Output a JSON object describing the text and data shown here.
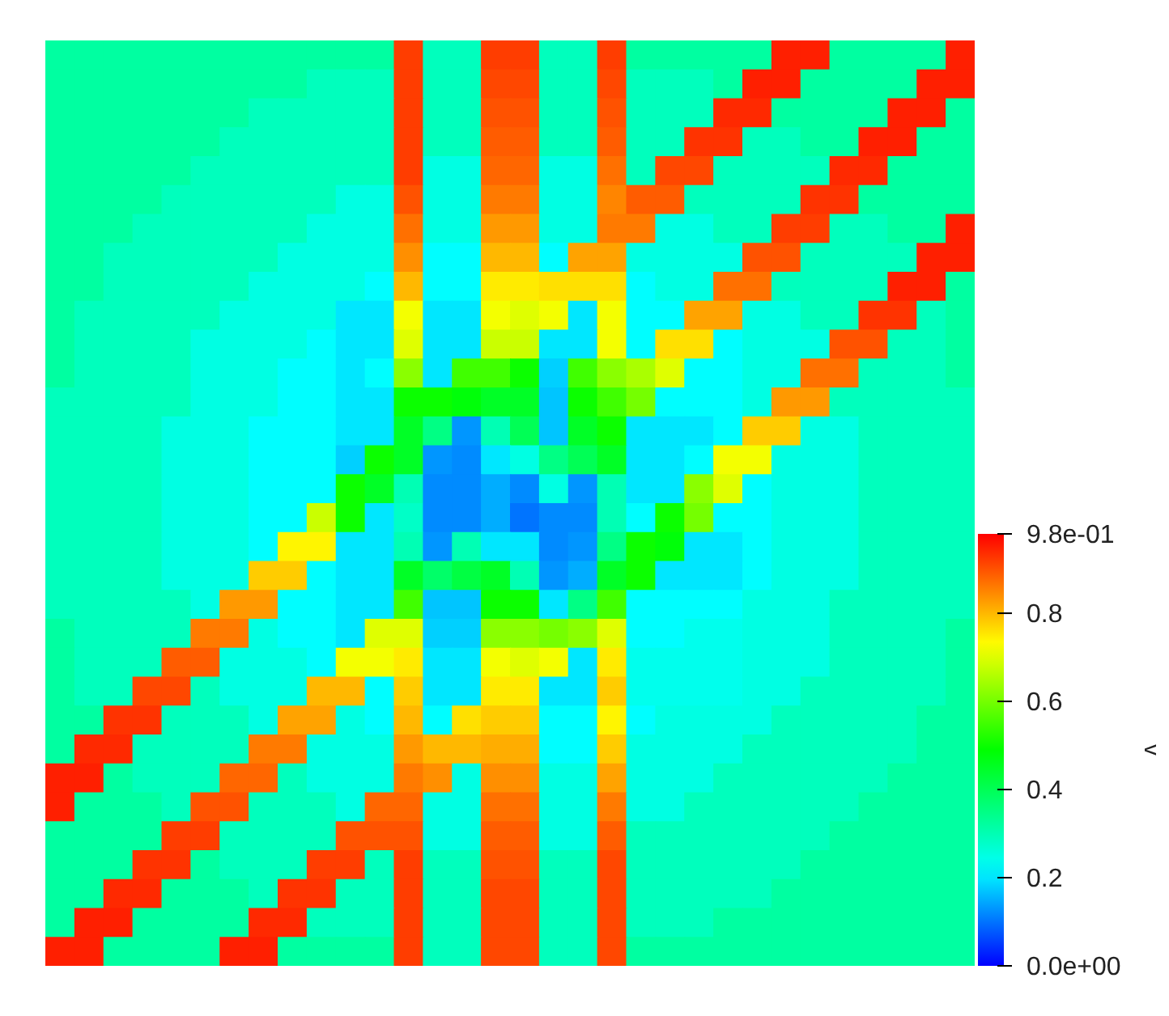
{
  "chart_data": {
    "type": "heatmap",
    "clabel": "v",
    "tick_labels": false,
    "categories": [
      null,
      null,
      null,
      null,
      null,
      null,
      null,
      null,
      null,
      null,
      null,
      null,
      null,
      null,
      null,
      null,
      null,
      null,
      null,
      null,
      null,
      null,
      null,
      null,
      null,
      null,
      null,
      null,
      null,
      null,
      null,
      null
    ],
    "y_categories": [
      null,
      null,
      null,
      null,
      null,
      null,
      null,
      null,
      null,
      null,
      null,
      null,
      null,
      null,
      null,
      null,
      null,
      null,
      null,
      null,
      null,
      null,
      null,
      null,
      null,
      null,
      null,
      null,
      null,
      null,
      null,
      null
    ],
    "clim": [
      0,
      0.98
    ],
    "cticks": [
      {
        "value": 0,
        "label": "0.0e+00"
      },
      {
        "value": 0.2,
        "label": "0.2"
      },
      {
        "value": 0.4,
        "label": "0.4"
      },
      {
        "value": 0.6,
        "label": "0.6"
      },
      {
        "value": 0.8,
        "label": "0.8"
      },
      {
        "value": 0.98,
        "label": "9.8e-01"
      }
    ],
    "cells": [
      [
        0.32,
        0.32,
        0.32,
        0.32,
        0.32,
        0.32,
        0.32,
        0.32,
        0.32,
        0.32,
        0.32,
        0.32,
        0.92,
        0.29,
        0.29,
        0.92,
        0.92,
        0.29,
        0.29,
        0.92,
        0.32,
        0.32,
        0.32,
        0.32,
        0.32,
        0.95,
        0.95,
        0.32,
        0.32,
        0.32,
        0.32,
        0.95
      ],
      [
        0.32,
        0.32,
        0.32,
        0.32,
        0.32,
        0.32,
        0.32,
        0.32,
        0.32,
        0.29,
        0.29,
        0.29,
        0.92,
        0.29,
        0.29,
        0.91,
        0.91,
        0.29,
        0.29,
        0.91,
        0.29,
        0.29,
        0.29,
        0.32,
        0.95,
        0.95,
        0.32,
        0.32,
        0.32,
        0.32,
        0.95,
        0.95
      ],
      [
        0.32,
        0.32,
        0.32,
        0.32,
        0.32,
        0.32,
        0.32,
        0.29,
        0.29,
        0.29,
        0.29,
        0.29,
        0.92,
        0.29,
        0.29,
        0.9,
        0.9,
        0.29,
        0.29,
        0.9,
        0.29,
        0.29,
        0.29,
        0.94,
        0.94,
        0.32,
        0.32,
        0.32,
        0.32,
        0.95,
        0.95,
        0.32
      ],
      [
        0.32,
        0.32,
        0.32,
        0.32,
        0.32,
        0.32,
        0.29,
        0.29,
        0.29,
        0.29,
        0.29,
        0.29,
        0.92,
        0.29,
        0.29,
        0.89,
        0.89,
        0.29,
        0.29,
        0.89,
        0.29,
        0.29,
        0.93,
        0.93,
        0.29,
        0.29,
        0.32,
        0.32,
        0.95,
        0.95,
        0.32,
        0.32
      ],
      [
        0.32,
        0.32,
        0.32,
        0.32,
        0.32,
        0.29,
        0.29,
        0.29,
        0.29,
        0.29,
        0.29,
        0.29,
        0.92,
        0.25,
        0.25,
        0.88,
        0.88,
        0.25,
        0.25,
        0.87,
        0.29,
        0.91,
        0.91,
        0.29,
        0.29,
        0.29,
        0.29,
        0.94,
        0.94,
        0.32,
        0.32,
        0.32
      ],
      [
        0.32,
        0.32,
        0.32,
        0.32,
        0.29,
        0.29,
        0.29,
        0.29,
        0.29,
        0.29,
        0.25,
        0.25,
        0.9,
        0.25,
        0.25,
        0.86,
        0.86,
        0.25,
        0.25,
        0.85,
        0.89,
        0.89,
        0.29,
        0.29,
        0.29,
        0.29,
        0.93,
        0.93,
        0.32,
        0.32,
        0.32,
        0.32
      ],
      [
        0.32,
        0.32,
        0.32,
        0.29,
        0.29,
        0.29,
        0.29,
        0.29,
        0.29,
        0.25,
        0.25,
        0.25,
        0.87,
        0.25,
        0.25,
        0.83,
        0.83,
        0.25,
        0.25,
        0.86,
        0.86,
        0.25,
        0.25,
        0.29,
        0.29,
        0.92,
        0.92,
        0.29,
        0.29,
        0.32,
        0.32,
        0.95
      ],
      [
        0.32,
        0.32,
        0.29,
        0.29,
        0.29,
        0.29,
        0.29,
        0.29,
        0.25,
        0.25,
        0.25,
        0.25,
        0.84,
        0.22,
        0.22,
        0.8,
        0.8,
        0.22,
        0.82,
        0.82,
        0.25,
        0.25,
        0.25,
        0.25,
        0.9,
        0.9,
        0.29,
        0.29,
        0.29,
        0.29,
        0.95,
        0.95
      ],
      [
        0.32,
        0.32,
        0.29,
        0.29,
        0.29,
        0.29,
        0.29,
        0.25,
        0.25,
        0.25,
        0.25,
        0.22,
        0.8,
        0.22,
        0.22,
        0.75,
        0.75,
        0.76,
        0.76,
        0.76,
        0.22,
        0.25,
        0.25,
        0.87,
        0.87,
        0.29,
        0.29,
        0.29,
        0.29,
        0.95,
        0.95,
        0.32
      ],
      [
        0.32,
        0.29,
        0.29,
        0.29,
        0.29,
        0.29,
        0.25,
        0.25,
        0.25,
        0.25,
        0.2,
        0.2,
        0.72,
        0.2,
        0.2,
        0.72,
        0.7,
        0.72,
        0.2,
        0.72,
        0.22,
        0.22,
        0.82,
        0.82,
        0.25,
        0.25,
        0.29,
        0.29,
        0.93,
        0.93,
        0.29,
        0.32
      ],
      [
        0.32,
        0.29,
        0.29,
        0.29,
        0.29,
        0.25,
        0.25,
        0.25,
        0.25,
        0.22,
        0.2,
        0.2,
        0.7,
        0.2,
        0.2,
        0.68,
        0.68,
        0.2,
        0.2,
        0.72,
        0.22,
        0.76,
        0.76,
        0.22,
        0.25,
        0.25,
        0.25,
        0.9,
        0.9,
        0.29,
        0.29,
        0.32
      ],
      [
        0.32,
        0.29,
        0.29,
        0.29,
        0.29,
        0.25,
        0.25,
        0.25,
        0.22,
        0.22,
        0.2,
        0.22,
        0.62,
        0.2,
        0.55,
        0.55,
        0.5,
        0.18,
        0.55,
        0.62,
        0.65,
        0.7,
        0.22,
        0.22,
        0.25,
        0.25,
        0.87,
        0.87,
        0.29,
        0.29,
        0.29,
        0.32
      ],
      [
        0.29,
        0.29,
        0.29,
        0.29,
        0.29,
        0.25,
        0.25,
        0.25,
        0.22,
        0.22,
        0.2,
        0.2,
        0.5,
        0.5,
        0.48,
        0.45,
        0.45,
        0.17,
        0.5,
        0.55,
        0.6,
        0.22,
        0.22,
        0.22,
        0.25,
        0.83,
        0.83,
        0.29,
        0.29,
        0.29,
        0.29,
        0.29
      ],
      [
        0.29,
        0.29,
        0.29,
        0.29,
        0.25,
        0.25,
        0.25,
        0.22,
        0.22,
        0.22,
        0.2,
        0.2,
        0.45,
        0.35,
        0.13,
        0.3,
        0.4,
        0.17,
        0.45,
        0.5,
        0.2,
        0.2,
        0.2,
        0.22,
        0.78,
        0.78,
        0.25,
        0.25,
        0.29,
        0.29,
        0.29,
        0.29
      ],
      [
        0.29,
        0.29,
        0.29,
        0.29,
        0.25,
        0.25,
        0.25,
        0.22,
        0.22,
        0.22,
        0.18,
        0.5,
        0.45,
        0.13,
        0.12,
        0.2,
        0.25,
        0.35,
        0.4,
        0.45,
        0.2,
        0.2,
        0.22,
        0.72,
        0.72,
        0.25,
        0.25,
        0.25,
        0.29,
        0.29,
        0.29,
        0.29
      ],
      [
        0.29,
        0.29,
        0.29,
        0.29,
        0.25,
        0.25,
        0.25,
        0.22,
        0.22,
        0.22,
        0.5,
        0.45,
        0.3,
        0.12,
        0.12,
        0.15,
        0.12,
        0.25,
        0.13,
        0.3,
        0.2,
        0.2,
        0.62,
        0.7,
        0.22,
        0.25,
        0.25,
        0.25,
        0.29,
        0.29,
        0.29,
        0.29
      ],
      [
        0.29,
        0.29,
        0.29,
        0.29,
        0.25,
        0.25,
        0.25,
        0.22,
        0.22,
        0.68,
        0.5,
        0.2,
        0.28,
        0.12,
        0.12,
        0.15,
        0.1,
        0.12,
        0.12,
        0.3,
        0.22,
        0.5,
        0.6,
        0.22,
        0.22,
        0.25,
        0.25,
        0.25,
        0.29,
        0.29,
        0.29,
        0.29
      ],
      [
        0.29,
        0.29,
        0.29,
        0.29,
        0.25,
        0.25,
        0.25,
        0.22,
        0.74,
        0.74,
        0.2,
        0.2,
        0.3,
        0.13,
        0.3,
        0.2,
        0.2,
        0.12,
        0.13,
        0.35,
        0.5,
        0.48,
        0.2,
        0.2,
        0.22,
        0.25,
        0.25,
        0.25,
        0.29,
        0.29,
        0.29,
        0.29
      ],
      [
        0.29,
        0.29,
        0.29,
        0.29,
        0.25,
        0.25,
        0.25,
        0.78,
        0.78,
        0.22,
        0.2,
        0.2,
        0.45,
        0.38,
        0.42,
        0.45,
        0.3,
        0.13,
        0.15,
        0.45,
        0.5,
        0.2,
        0.2,
        0.2,
        0.22,
        0.25,
        0.25,
        0.25,
        0.29,
        0.29,
        0.29,
        0.29
      ],
      [
        0.29,
        0.29,
        0.29,
        0.29,
        0.29,
        0.25,
        0.83,
        0.83,
        0.22,
        0.22,
        0.2,
        0.2,
        0.55,
        0.17,
        0.17,
        0.5,
        0.5,
        0.2,
        0.35,
        0.55,
        0.22,
        0.22,
        0.22,
        0.22,
        0.25,
        0.25,
        0.25,
        0.29,
        0.29,
        0.29,
        0.29,
        0.29
      ],
      [
        0.32,
        0.29,
        0.29,
        0.29,
        0.29,
        0.86,
        0.86,
        0.25,
        0.22,
        0.22,
        0.2,
        0.7,
        0.7,
        0.18,
        0.18,
        0.62,
        0.62,
        0.6,
        0.62,
        0.7,
        0.22,
        0.22,
        0.24,
        0.24,
        0.25,
        0.25,
        0.25,
        0.29,
        0.29,
        0.29,
        0.29,
        0.32
      ],
      [
        0.32,
        0.29,
        0.29,
        0.29,
        0.89,
        0.89,
        0.25,
        0.25,
        0.25,
        0.22,
        0.72,
        0.72,
        0.75,
        0.2,
        0.2,
        0.72,
        0.7,
        0.72,
        0.2,
        0.75,
        0.24,
        0.24,
        0.24,
        0.24,
        0.25,
        0.25,
        0.25,
        0.29,
        0.29,
        0.29,
        0.29,
        0.32
      ],
      [
        0.32,
        0.29,
        0.29,
        0.91,
        0.91,
        0.29,
        0.25,
        0.25,
        0.25,
        0.8,
        0.8,
        0.22,
        0.78,
        0.2,
        0.2,
        0.75,
        0.75,
        0.2,
        0.2,
        0.78,
        0.24,
        0.24,
        0.24,
        0.24,
        0.25,
        0.25,
        0.29,
        0.29,
        0.29,
        0.29,
        0.29,
        0.32
      ],
      [
        0.32,
        0.32,
        0.93,
        0.93,
        0.29,
        0.29,
        0.29,
        0.25,
        0.82,
        0.82,
        0.25,
        0.22,
        0.8,
        0.22,
        0.76,
        0.78,
        0.78,
        0.22,
        0.22,
        0.74,
        0.22,
        0.25,
        0.25,
        0.25,
        0.25,
        0.29,
        0.29,
        0.29,
        0.29,
        0.29,
        0.32,
        0.32
      ],
      [
        0.32,
        0.94,
        0.94,
        0.29,
        0.29,
        0.29,
        0.29,
        0.86,
        0.86,
        0.25,
        0.25,
        0.25,
        0.83,
        0.8,
        0.8,
        0.81,
        0.81,
        0.22,
        0.22,
        0.78,
        0.25,
        0.25,
        0.25,
        0.25,
        0.29,
        0.29,
        0.29,
        0.29,
        0.29,
        0.29,
        0.32,
        0.32
      ],
      [
        0.95,
        0.95,
        0.32,
        0.29,
        0.29,
        0.29,
        0.88,
        0.88,
        0.29,
        0.25,
        0.25,
        0.25,
        0.86,
        0.84,
        0.25,
        0.84,
        0.84,
        0.25,
        0.25,
        0.82,
        0.25,
        0.25,
        0.25,
        0.29,
        0.29,
        0.29,
        0.29,
        0.29,
        0.29,
        0.32,
        0.32,
        0.32
      ],
      [
        0.95,
        0.32,
        0.32,
        0.32,
        0.29,
        0.9,
        0.9,
        0.29,
        0.29,
        0.29,
        0.25,
        0.88,
        0.88,
        0.25,
        0.25,
        0.87,
        0.87,
        0.25,
        0.25,
        0.86,
        0.25,
        0.25,
        0.29,
        0.29,
        0.29,
        0.29,
        0.29,
        0.29,
        0.32,
        0.32,
        0.32,
        0.32
      ],
      [
        0.32,
        0.32,
        0.32,
        0.32,
        0.92,
        0.92,
        0.29,
        0.29,
        0.29,
        0.29,
        0.9,
        0.9,
        0.9,
        0.25,
        0.25,
        0.89,
        0.89,
        0.25,
        0.25,
        0.89,
        0.29,
        0.29,
        0.29,
        0.29,
        0.29,
        0.29,
        0.29,
        0.32,
        0.32,
        0.32,
        0.32,
        0.32
      ],
      [
        0.32,
        0.32,
        0.32,
        0.93,
        0.93,
        0.32,
        0.29,
        0.29,
        0.29,
        0.92,
        0.92,
        0.29,
        0.92,
        0.29,
        0.29,
        0.9,
        0.9,
        0.29,
        0.29,
        0.91,
        0.29,
        0.29,
        0.29,
        0.29,
        0.29,
        0.29,
        0.32,
        0.32,
        0.32,
        0.32,
        0.32,
        0.32
      ],
      [
        0.32,
        0.32,
        0.94,
        0.94,
        0.32,
        0.32,
        0.32,
        0.29,
        0.93,
        0.93,
        0.29,
        0.29,
        0.92,
        0.29,
        0.29,
        0.91,
        0.91,
        0.29,
        0.29,
        0.91,
        0.29,
        0.29,
        0.29,
        0.29,
        0.29,
        0.32,
        0.32,
        0.32,
        0.32,
        0.32,
        0.32,
        0.32
      ],
      [
        0.32,
        0.95,
        0.95,
        0.32,
        0.32,
        0.32,
        0.32,
        0.94,
        0.94,
        0.29,
        0.29,
        0.29,
        0.92,
        0.29,
        0.29,
        0.91,
        0.91,
        0.29,
        0.29,
        0.91,
        0.29,
        0.29,
        0.29,
        0.32,
        0.32,
        0.32,
        0.32,
        0.32,
        0.32,
        0.32,
        0.32,
        0.32
      ],
      [
        0.95,
        0.95,
        0.32,
        0.32,
        0.32,
        0.32,
        0.95,
        0.95,
        0.32,
        0.32,
        0.32,
        0.32,
        0.92,
        0.29,
        0.29,
        0.91,
        0.91,
        0.29,
        0.29,
        0.91,
        0.32,
        0.32,
        0.32,
        0.32,
        0.32,
        0.32,
        0.32,
        0.32,
        0.32,
        0.32,
        0.32,
        0.32
      ]
    ]
  }
}
